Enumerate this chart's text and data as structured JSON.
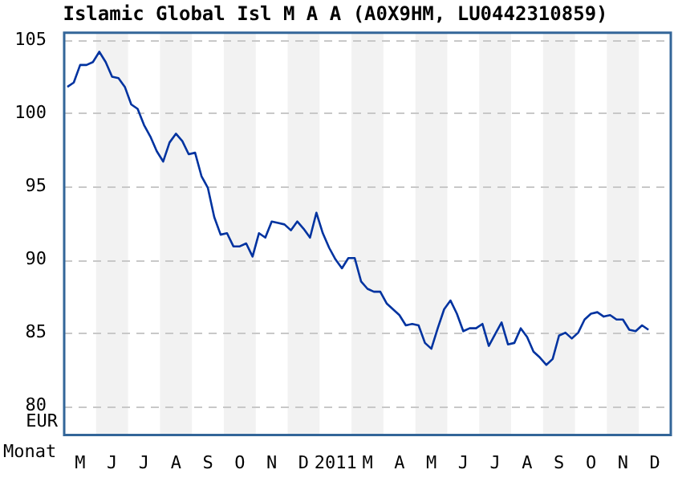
{
  "chart_data": {
    "type": "line",
    "title": "Islamic Global Isl M A A (A0X9HM, LU0442310859)",
    "xlabel": "Monat",
    "ylabel": "EUR",
    "categories": [
      null,
      null,
      "M",
      null,
      null,
      null,
      null,
      "J",
      null,
      null,
      null,
      null,
      "J",
      null,
      null,
      null,
      null,
      "A",
      null,
      null,
      null,
      null,
      "S",
      null,
      null,
      null,
      null,
      "O",
      null,
      null,
      null,
      null,
      "N",
      null,
      null,
      null,
      null,
      "D",
      null,
      null,
      null,
      null,
      "2011",
      null,
      null,
      null,
      null,
      "M",
      null,
      null,
      null,
      null,
      "A",
      null,
      null,
      null,
      null,
      "M",
      null,
      null,
      null,
      null,
      "J",
      null,
      null,
      null,
      null,
      "J",
      null,
      null,
      null,
      null,
      "A",
      null,
      null,
      null,
      null,
      "S",
      null,
      null,
      null,
      null,
      "O",
      null,
      null,
      null,
      null,
      "N",
      null,
      null,
      null,
      null,
      "D",
      null,
      null
    ],
    "ylim": [
      78,
      105.5
    ],
    "yticks": [
      80,
      85,
      90,
      95,
      100,
      105
    ],
    "grid": "y",
    "line_style": "dashed",
    "legend": false,
    "series": [
      {
        "color": "#0033a0",
        "line_style": "solid",
        "marker": "none",
        "values": [
          101.8,
          102.1,
          103.3,
          103.3,
          103.5,
          104.2,
          103.5,
          102.5,
          102.4,
          101.8,
          100.6,
          100.3,
          99.2,
          98.4,
          97.4,
          96.7,
          98.0,
          98.6,
          98.1,
          97.2,
          97.3,
          95.7,
          94.9,
          92.9,
          91.7,
          91.8,
          90.9,
          90.9,
          91.1,
          90.2,
          91.8,
          91.5,
          92.6,
          92.5,
          92.4,
          92.0,
          92.6,
          92.1,
          91.5,
          93.2,
          91.8,
          90.8,
          90.0,
          89.4,
          90.1,
          90.1,
          88.5,
          88.0,
          87.8,
          87.8,
          87.0,
          86.6,
          86.2,
          85.5,
          85.6,
          85.5,
          84.3,
          83.9,
          85.3,
          86.6,
          87.2,
          86.3,
          85.1,
          85.3,
          85.3,
          85.6,
          84.1,
          84.9,
          85.7,
          84.2,
          84.3,
          85.3,
          84.7,
          83.7,
          83.3,
          82.8,
          83.2,
          84.8,
          85.0,
          84.6,
          85.0,
          85.9,
          86.3,
          86.4,
          86.1,
          86.2,
          85.9,
          85.9,
          85.2,
          85.1,
          85.5,
          85.2,
          null,
          null,
          null
        ]
      }
    ]
  }
}
